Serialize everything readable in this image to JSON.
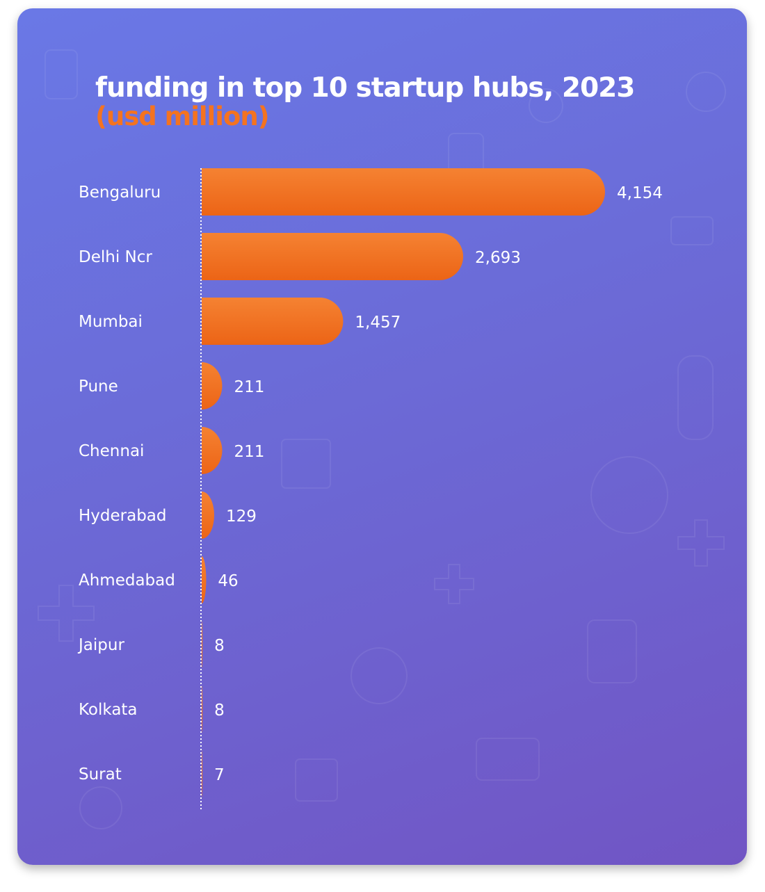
{
  "chart_data": {
    "type": "bar",
    "orientation": "horizontal",
    "title": "funding in top 10 startup hubs, 2023",
    "subtitle": "(usd million)",
    "categories": [
      "Bengaluru",
      "Delhi Ncr",
      "Mumbai",
      "Pune",
      "Chennai",
      "Hyderabad",
      "Ahmedabad",
      "Jaipur",
      "Kolkata",
      "Surat"
    ],
    "values": [
      4154,
      2693,
      1457,
      211,
      211,
      129,
      46,
      8,
      8,
      7
    ],
    "value_labels": [
      "4,154",
      "2,693",
      "1,457",
      "211",
      "211",
      "129",
      "46",
      "8",
      "8",
      "7"
    ],
    "xlim": [
      0,
      4154
    ],
    "grid": false,
    "legend": "none",
    "colors": {
      "bar": "#f26f1e",
      "bar_top": "#f58232",
      "text": "#ffffff",
      "subtitle": "#f47320",
      "background_start": "#6a78e6",
      "background_end": "#7155c4"
    }
  }
}
